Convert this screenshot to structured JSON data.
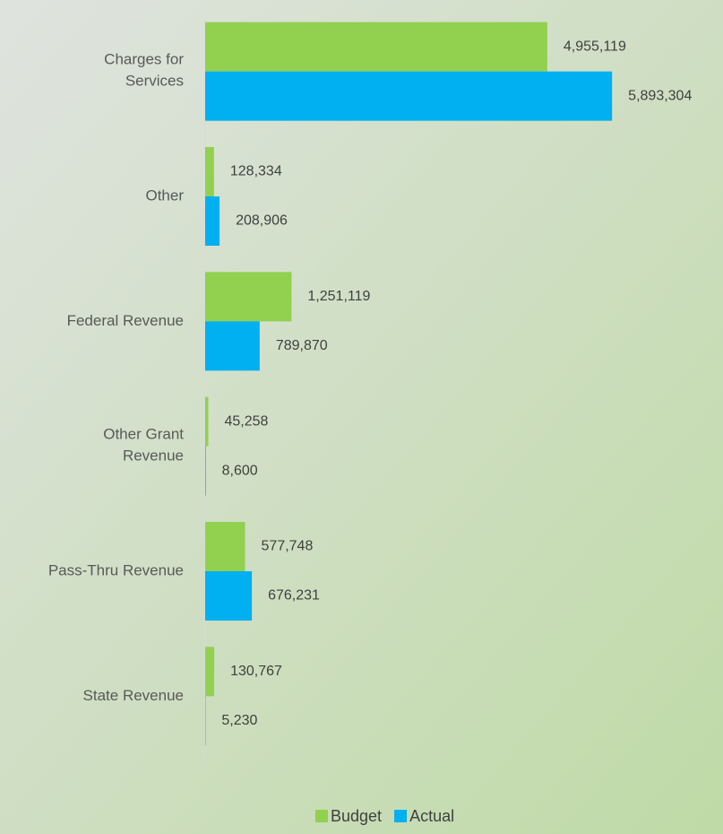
{
  "chart_data": {
    "type": "bar",
    "orientation": "horizontal",
    "categories": [
      "Charges for Services",
      "Other",
      "Federal Revenue",
      "Other Grant Revenue",
      "Pass-Thru Revenue",
      "State Revenue"
    ],
    "series": [
      {
        "name": "Budget",
        "color": "#92d050",
        "values": [
          4955119,
          128334,
          1251119,
          45258,
          577748,
          130767
        ],
        "value_labels": [
          "4,955,119",
          "128,334",
          "1,251,119",
          "45,258",
          "577,748",
          "130,767"
        ]
      },
      {
        "name": "Actual",
        "color": "#00b0f0",
        "values": [
          5893304,
          208906,
          789870,
          8600,
          676231,
          5230
        ],
        "value_labels": [
          "5,893,304",
          "208,906",
          "789,870",
          "8,600",
          "676,231",
          "5,230"
        ]
      }
    ],
    "xlim": [
      0,
      7500000
    ],
    "legend": "bottom"
  }
}
